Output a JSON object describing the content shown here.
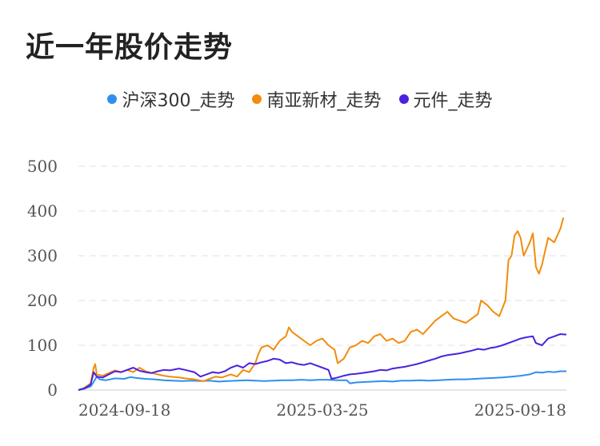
{
  "chart_data": {
    "type": "line",
    "title": "近一年股价走势",
    "x": [
      "2024-09-18",
      "2025-03-25",
      "2025-09-18"
    ],
    "ylim": [
      0,
      500
    ],
    "yticks": [
      "0",
      "100",
      "200",
      "300",
      "400",
      "500"
    ],
    "xticks": [
      "2024-09-18",
      "2025-03-25",
      "2025-09-18"
    ],
    "grid": true,
    "legend_position": "top-center",
    "series": [
      {
        "name": "沪深300_走势",
        "color": "#2f8ff0",
        "points": [
          [
            0,
            0
          ],
          [
            4,
            3
          ],
          [
            8,
            8
          ],
          [
            10,
            18
          ],
          [
            12,
            30
          ],
          [
            14,
            24
          ],
          [
            18,
            22
          ],
          [
            24,
            26
          ],
          [
            30,
            25
          ],
          [
            34,
            29
          ],
          [
            38,
            27
          ],
          [
            44,
            25
          ],
          [
            50,
            24
          ],
          [
            56,
            22
          ],
          [
            62,
            21
          ],
          [
            68,
            20
          ],
          [
            74,
            21
          ],
          [
            80,
            20
          ],
          [
            86,
            21
          ],
          [
            92,
            19
          ],
          [
            98,
            20
          ],
          [
            104,
            21
          ],
          [
            110,
            22
          ],
          [
            116,
            21
          ],
          [
            122,
            20
          ],
          [
            128,
            21
          ],
          [
            134,
            22
          ],
          [
            140,
            22
          ],
          [
            146,
            23
          ],
          [
            152,
            22
          ],
          [
            158,
            23
          ],
          [
            164,
            23
          ],
          [
            170,
            22
          ],
          [
            176,
            22
          ],
          [
            178,
            15
          ],
          [
            182,
            17
          ],
          [
            188,
            18
          ],
          [
            194,
            19
          ],
          [
            200,
            20
          ],
          [
            206,
            19
          ],
          [
            212,
            21
          ],
          [
            218,
            21
          ],
          [
            224,
            22
          ],
          [
            230,
            21
          ],
          [
            236,
            22
          ],
          [
            242,
            23
          ],
          [
            248,
            24
          ],
          [
            254,
            24
          ],
          [
            260,
            25
          ],
          [
            266,
            26
          ],
          [
            272,
            27
          ],
          [
            278,
            28
          ],
          [
            284,
            30
          ],
          [
            290,
            32
          ],
          [
            296,
            35
          ],
          [
            300,
            40
          ],
          [
            304,
            39
          ],
          [
            308,
            41
          ],
          [
            312,
            40
          ],
          [
            316,
            42
          ],
          [
            320,
            42
          ]
        ]
      },
      {
        "name": "南亚新材_走势",
        "color": "#f28c0c",
        "points": [
          [
            0,
            0
          ],
          [
            4,
            5
          ],
          [
            8,
            15
          ],
          [
            10,
            50
          ],
          [
            11,
            58
          ],
          [
            12,
            35
          ],
          [
            16,
            32
          ],
          [
            20,
            38
          ],
          [
            24,
            44
          ],
          [
            28,
            40
          ],
          [
            32,
            45
          ],
          [
            36,
            40
          ],
          [
            40,
            50
          ],
          [
            44,
            42
          ],
          [
            48,
            38
          ],
          [
            52,
            35
          ],
          [
            56,
            32
          ],
          [
            60,
            30
          ],
          [
            66,
            28
          ],
          [
            70,
            26
          ],
          [
            76,
            24
          ],
          [
            82,
            20
          ],
          [
            86,
            25
          ],
          [
            90,
            30
          ],
          [
            94,
            28
          ],
          [
            100,
            35
          ],
          [
            104,
            30
          ],
          [
            108,
            45
          ],
          [
            112,
            40
          ],
          [
            116,
            60
          ],
          [
            118,
            80
          ],
          [
            120,
            95
          ],
          [
            124,
            100
          ],
          [
            128,
            90
          ],
          [
            132,
            110
          ],
          [
            136,
            120
          ],
          [
            138,
            140
          ],
          [
            140,
            130
          ],
          [
            144,
            120
          ],
          [
            148,
            110
          ],
          [
            152,
            100
          ],
          [
            156,
            110
          ],
          [
            160,
            115
          ],
          [
            164,
            100
          ],
          [
            168,
            90
          ],
          [
            170,
            60
          ],
          [
            174,
            70
          ],
          [
            178,
            95
          ],
          [
            182,
            100
          ],
          [
            186,
            110
          ],
          [
            190,
            105
          ],
          [
            194,
            120
          ],
          [
            198,
            125
          ],
          [
            202,
            110
          ],
          [
            206,
            115
          ],
          [
            210,
            105
          ],
          [
            214,
            110
          ],
          [
            218,
            130
          ],
          [
            222,
            135
          ],
          [
            226,
            125
          ],
          [
            230,
            140
          ],
          [
            234,
            155
          ],
          [
            238,
            165
          ],
          [
            242,
            175
          ],
          [
            246,
            160
          ],
          [
            250,
            155
          ],
          [
            254,
            150
          ],
          [
            258,
            160
          ],
          [
            262,
            170
          ],
          [
            264,
            200
          ],
          [
            268,
            190
          ],
          [
            272,
            175
          ],
          [
            276,
            165
          ],
          [
            280,
            200
          ],
          [
            282,
            290
          ],
          [
            284,
            300
          ],
          [
            286,
            345
          ],
          [
            288,
            355
          ],
          [
            290,
            340
          ],
          [
            292,
            300
          ],
          [
            296,
            330
          ],
          [
            298,
            350
          ],
          [
            300,
            275
          ],
          [
            302,
            260
          ],
          [
            304,
            280
          ],
          [
            308,
            340
          ],
          [
            312,
            330
          ],
          [
            316,
            360
          ],
          [
            318,
            385
          ]
        ]
      },
      {
        "name": "元件_走势",
        "color": "#4a22e0",
        "points": [
          [
            0,
            0
          ],
          [
            4,
            4
          ],
          [
            8,
            12
          ],
          [
            10,
            40
          ],
          [
            12,
            30
          ],
          [
            16,
            28
          ],
          [
            20,
            35
          ],
          [
            24,
            42
          ],
          [
            28,
            40
          ],
          [
            32,
            45
          ],
          [
            36,
            50
          ],
          [
            40,
            43
          ],
          [
            44,
            40
          ],
          [
            48,
            38
          ],
          [
            52,
            42
          ],
          [
            56,
            45
          ],
          [
            60,
            44
          ],
          [
            66,
            48
          ],
          [
            70,
            45
          ],
          [
            76,
            40
          ],
          [
            80,
            30
          ],
          [
            84,
            35
          ],
          [
            88,
            40
          ],
          [
            92,
            38
          ],
          [
            96,
            42
          ],
          [
            100,
            50
          ],
          [
            104,
            55
          ],
          [
            108,
            50
          ],
          [
            112,
            60
          ],
          [
            116,
            58
          ],
          [
            120,
            62
          ],
          [
            124,
            65
          ],
          [
            128,
            70
          ],
          [
            132,
            68
          ],
          [
            136,
            60
          ],
          [
            140,
            62
          ],
          [
            144,
            58
          ],
          [
            148,
            56
          ],
          [
            152,
            60
          ],
          [
            156,
            55
          ],
          [
            160,
            50
          ],
          [
            164,
            45
          ],
          [
            166,
            25
          ],
          [
            170,
            28
          ],
          [
            174,
            32
          ],
          [
            178,
            35
          ],
          [
            182,
            36
          ],
          [
            186,
            38
          ],
          [
            190,
            40
          ],
          [
            194,
            42
          ],
          [
            198,
            45
          ],
          [
            202,
            44
          ],
          [
            206,
            48
          ],
          [
            210,
            50
          ],
          [
            214,
            52
          ],
          [
            218,
            55
          ],
          [
            222,
            58
          ],
          [
            226,
            62
          ],
          [
            230,
            66
          ],
          [
            234,
            70
          ],
          [
            238,
            75
          ],
          [
            242,
            78
          ],
          [
            246,
            80
          ],
          [
            250,
            82
          ],
          [
            254,
            85
          ],
          [
            258,
            88
          ],
          [
            262,
            92
          ],
          [
            266,
            90
          ],
          [
            270,
            94
          ],
          [
            274,
            96
          ],
          [
            278,
            100
          ],
          [
            282,
            105
          ],
          [
            286,
            110
          ],
          [
            290,
            115
          ],
          [
            294,
            118
          ],
          [
            298,
            120
          ],
          [
            300,
            105
          ],
          [
            304,
            100
          ],
          [
            308,
            115
          ],
          [
            312,
            120
          ],
          [
            316,
            125
          ],
          [
            320,
            124
          ]
        ]
      }
    ]
  }
}
